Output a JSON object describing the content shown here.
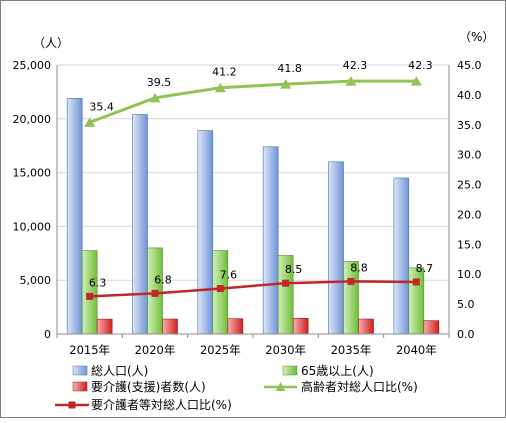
{
  "chart_data": {
    "type": "bar",
    "categories": [
      "2015年",
      "2020年",
      "2025年",
      "2030年",
      "2035年",
      "2040年"
    ],
    "y_left": {
      "unit_label": "（人）",
      "ylim": [
        0,
        25000
      ],
      "ticks": [
        "0",
        "5,000",
        "10,000",
        "15,000",
        "20,000",
        "25,000"
      ]
    },
    "y_right": {
      "unit_label": "（%）",
      "ylim": [
        0,
        45
      ],
      "ticks": [
        "0.0",
        "5.0",
        "10.0",
        "15.0",
        "20.0",
        "25.0",
        "30.0",
        "35.0",
        "40.0",
        "45.0"
      ]
    },
    "bar_series": [
      {
        "name": "総人口(人)",
        "axis": "left",
        "color": "#8eaadc",
        "values": [
          21900,
          20400,
          18900,
          17400,
          16000,
          14500
        ]
      },
      {
        "name": "65歳以上(人)",
        "axis": "left",
        "color": "#8fce5a",
        "values": [
          7750,
          8000,
          7750,
          7300,
          6750,
          6150
        ]
      },
      {
        "name": "要介護(支援)者数(人)",
        "axis": "left",
        "color": "#e03b3b",
        "values": [
          1380,
          1390,
          1420,
          1460,
          1390,
          1240
        ]
      }
    ],
    "line_series": [
      {
        "name": "高齢者対総人口比(%)",
        "axis": "right",
        "color": "#92c356",
        "marker": "triangle",
        "values": [
          35.4,
          39.5,
          41.2,
          41.8,
          42.3,
          42.3
        ],
        "labels": [
          "35.4",
          "39.5",
          "41.2",
          "41.8",
          "42.3",
          "42.3"
        ]
      },
      {
        "name": "要介護者等対総人口比(%)",
        "axis": "right",
        "color": "#c0262c",
        "marker": "square",
        "values": [
          6.3,
          6.8,
          7.6,
          8.5,
          8.8,
          8.7
        ],
        "labels": [
          "6.3",
          "6.8",
          "7.6",
          "8.5",
          "8.8",
          "8.7"
        ]
      }
    ],
    "grid": true,
    "legend_position": "bottom"
  }
}
